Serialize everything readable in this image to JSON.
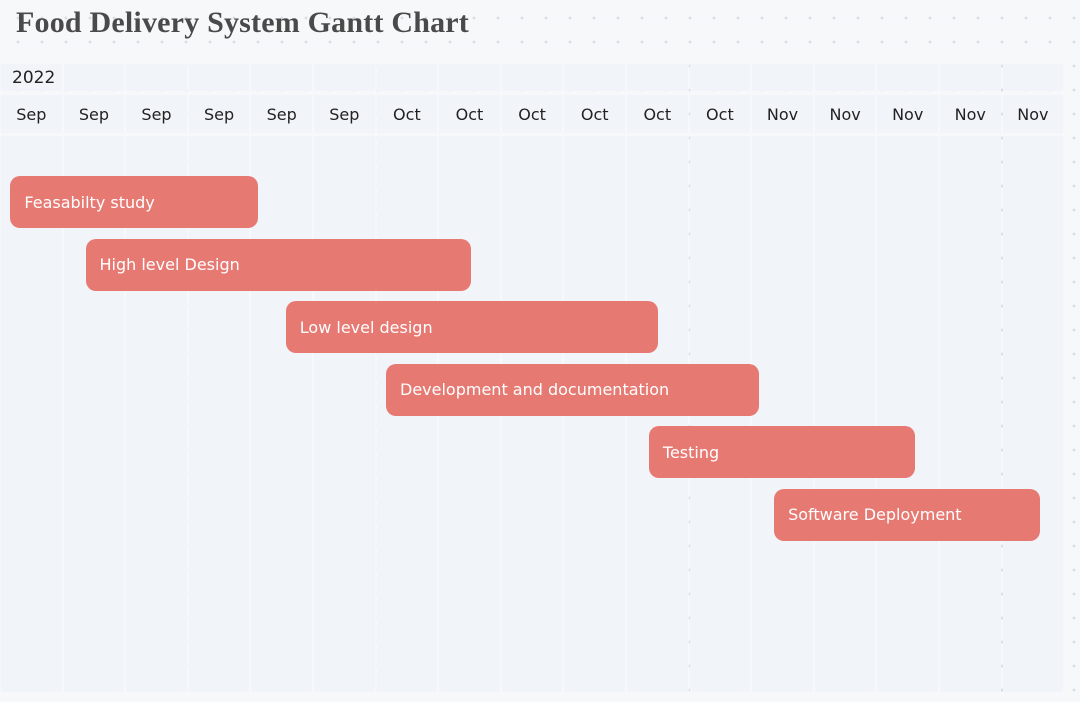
{
  "title": "Food Delivery System Gantt Chart",
  "chart_data": {
    "type": "gantt",
    "title": "Food Delivery System Gantt Chart",
    "year_label": "2022",
    "month_labels": [
      "Sep",
      "Sep",
      "Sep",
      "Sep",
      "Sep",
      "Sep",
      "Oct",
      "Oct",
      "Oct",
      "Oct",
      "Oct",
      "Oct",
      "Nov",
      "Nov",
      "Nov",
      "Nov",
      "Nov"
    ],
    "tasks": [
      {
        "name": "Feasabilty study",
        "start": 0.15,
        "end": 4.1
      },
      {
        "name": "High level Design",
        "start": 1.35,
        "end": 7.5
      },
      {
        "name": "Low level design",
        "start": 4.55,
        "end": 10.5
      },
      {
        "name": "Development and documentation",
        "start": 6.15,
        "end": 12.1
      },
      {
        "name": "Testing",
        "start": 10.35,
        "end": 14.6
      },
      {
        "name": "Software Deployment",
        "start": 12.35,
        "end": 16.6
      }
    ],
    "bar_color": "#e77973",
    "grid_color": "#f1f4f8"
  }
}
